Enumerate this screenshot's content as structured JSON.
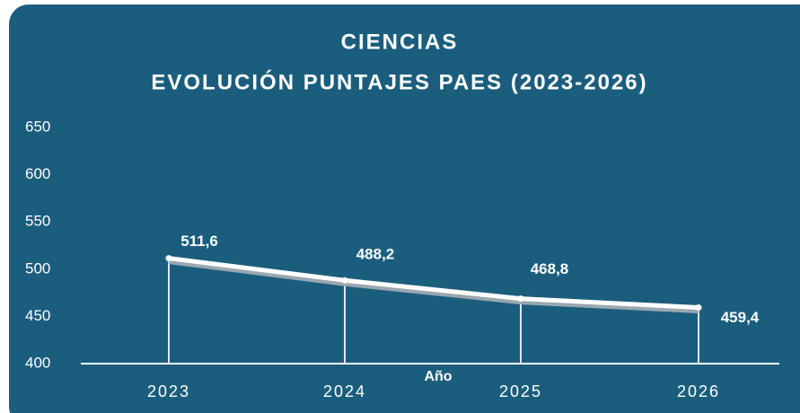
{
  "chart_data": {
    "type": "line",
    "title": "CIENCIAS",
    "subtitle": "EVOLUCIÓN PUNTAJES PAES (2023-2026)",
    "x_label": "Año",
    "categories": [
      "2023",
      "2024",
      "2025",
      "2026"
    ],
    "series": [
      {
        "name": "Ciencias",
        "color": "#ffffff",
        "values": [
          511.6,
          488.2,
          468.8,
          459.4
        ],
        "value_labels": [
          "511,6",
          "488,2",
          "468,8",
          "459,4"
        ]
      }
    ],
    "ylim": [
      400,
      650
    ],
    "yticks": [
      400,
      450,
      500,
      550,
      600,
      650
    ],
    "grid": false,
    "drop_lines": true
  }
}
